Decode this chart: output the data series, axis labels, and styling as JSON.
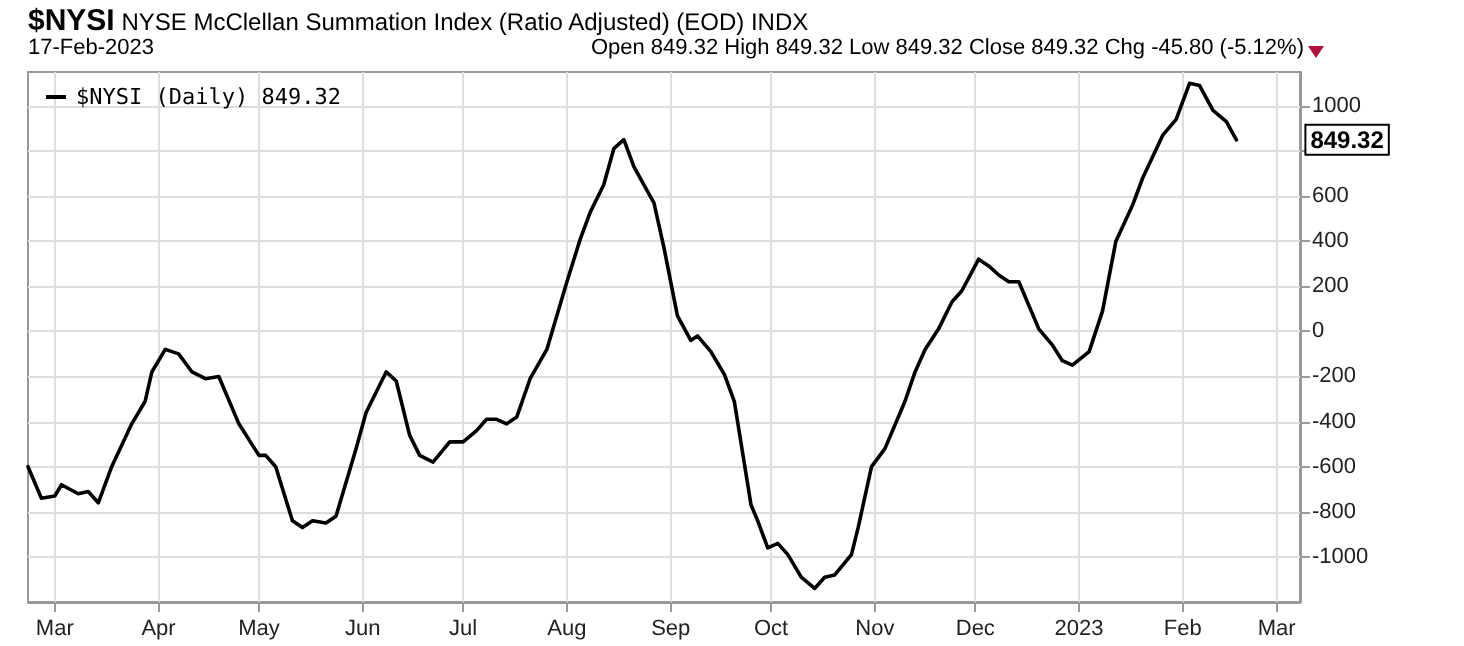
{
  "chart_data": {
    "type": "line",
    "title": "$NYSI NYSE McClellan Summation Index (Ratio Adjusted) (EOD) INDX",
    "subtitle": "17-Feb-2023",
    "annotations": [
      "Open 849.32 High 849.32 Low 849.32 Close 849.32 Chg -45.80 (-5.12%)",
      "849.32"
    ],
    "x": [
      "2022-02-21",
      "2022-02-25",
      "2022-03-01",
      "2022-03-03",
      "2022-03-08",
      "2022-03-11",
      "2022-03-14",
      "2022-03-18",
      "2022-03-24",
      "2022-03-28",
      "2022-03-30",
      "2022-04-03",
      "2022-04-07",
      "2022-04-11",
      "2022-04-15",
      "2022-04-19",
      "2022-04-25",
      "2022-05-01",
      "2022-05-03",
      "2022-05-06",
      "2022-05-11",
      "2022-05-14",
      "2022-05-17",
      "2022-05-21",
      "2022-05-24",
      "2022-05-30",
      "2022-06-02",
      "2022-06-05",
      "2022-06-08",
      "2022-06-11",
      "2022-06-15",
      "2022-06-18",
      "2022-06-22",
      "2022-06-27",
      "2022-07-01",
      "2022-07-05",
      "2022-07-08",
      "2022-07-11",
      "2022-07-14",
      "2022-07-17",
      "2022-07-21",
      "2022-07-26",
      "2022-08-01",
      "2022-08-05",
      "2022-08-08",
      "2022-08-12",
      "2022-08-15",
      "2022-08-18",
      "2022-08-21",
      "2022-08-24",
      "2022-08-27",
      "2022-08-30",
      "2022-09-03",
      "2022-09-07",
      "2022-09-09",
      "2022-09-13",
      "2022-09-17",
      "2022-09-20",
      "2022-09-25",
      "2022-09-27",
      "2022-09-30",
      "2022-10-03",
      "2022-10-06",
      "2022-10-10",
      "2022-10-14",
      "2022-10-17",
      "2022-10-20",
      "2022-10-25",
      "2022-10-27",
      "2022-10-31",
      "2022-11-04",
      "2022-11-10",
      "2022-11-13",
      "2022-11-16",
      "2022-11-20",
      "2022-11-24",
      "2022-11-27",
      "2022-12-02",
      "2022-12-05",
      "2022-12-08",
      "2022-12-11",
      "2022-12-14",
      "2022-12-20",
      "2022-12-24",
      "2022-12-27",
      "2022-12-30",
      "2023-01-04",
      "2023-01-08",
      "2023-01-12",
      "2023-01-17",
      "2023-01-20",
      "2023-01-26",
      "2023-01-30",
      "2023-02-03",
      "2023-02-06",
      "2023-02-10",
      "2023-02-14",
      "2023-02-17"
    ],
    "series": [
      {
        "name": "$NYSI (Daily) 849.32",
        "color": "#000000",
        "values": [
          -600,
          -740,
          -730,
          -680,
          -720,
          -710,
          -760,
          -600,
          -410,
          -310,
          -180,
          -80,
          -100,
          -180,
          -210,
          -200,
          -410,
          -550,
          -550,
          -600,
          -840,
          -870,
          -840,
          -850,
          -820,
          -520,
          -360,
          -270,
          -180,
          -220,
          -460,
          -550,
          -580,
          -490,
          -490,
          -440,
          -390,
          -390,
          -410,
          -380,
          -210,
          -80,
          220,
          410,
          530,
          650,
          810,
          850,
          730,
          650,
          570,
          370,
          70,
          -40,
          -20,
          -90,
          -190,
          -310,
          -770,
          -840,
          -960,
          -940,
          -990,
          -1090,
          -1140,
          -1090,
          -1080,
          -990,
          -870,
          -600,
          -520,
          -310,
          -180,
          -80,
          10,
          130,
          180,
          320,
          290,
          250,
          220,
          220,
          10,
          -60,
          -130,
          -150,
          -90,
          90,
          400,
          560,
          680,
          870,
          940,
          1100,
          1090,
          980,
          930,
          849.32
        ]
      }
    ],
    "xlim": [
      "2022-02-21",
      "2023-03-08"
    ],
    "xticks": [
      {
        "value": "2022-03-01",
        "label": "Mar"
      },
      {
        "value": "2022-04-01",
        "label": "Apr"
      },
      {
        "value": "2022-05-01",
        "label": "May"
      },
      {
        "value": "2022-06-01",
        "label": "Jun"
      },
      {
        "value": "2022-07-01",
        "label": "Jul"
      },
      {
        "value": "2022-08-01",
        "label": "Aug"
      },
      {
        "value": "2022-09-01",
        "label": "Sep"
      },
      {
        "value": "2022-10-01",
        "label": "Oct"
      },
      {
        "value": "2022-11-01",
        "label": "Nov"
      },
      {
        "value": "2022-12-01",
        "label": "Dec"
      },
      {
        "value": "2023-01-01",
        "label": "2023"
      },
      {
        "value": "2023-02-01",
        "label": "Feb"
      },
      {
        "value": "2023-03-01",
        "label": "Mar"
      }
    ],
    "ylim": [
      -1200,
      1150
    ],
    "yticks": [
      -1000,
      -800,
      -600,
      -400,
      -200,
      0,
      200,
      400,
      600,
      {
        "value": 800,
        "label": null
      },
      1000
    ],
    "grid": true,
    "legend": "top left"
  }
}
